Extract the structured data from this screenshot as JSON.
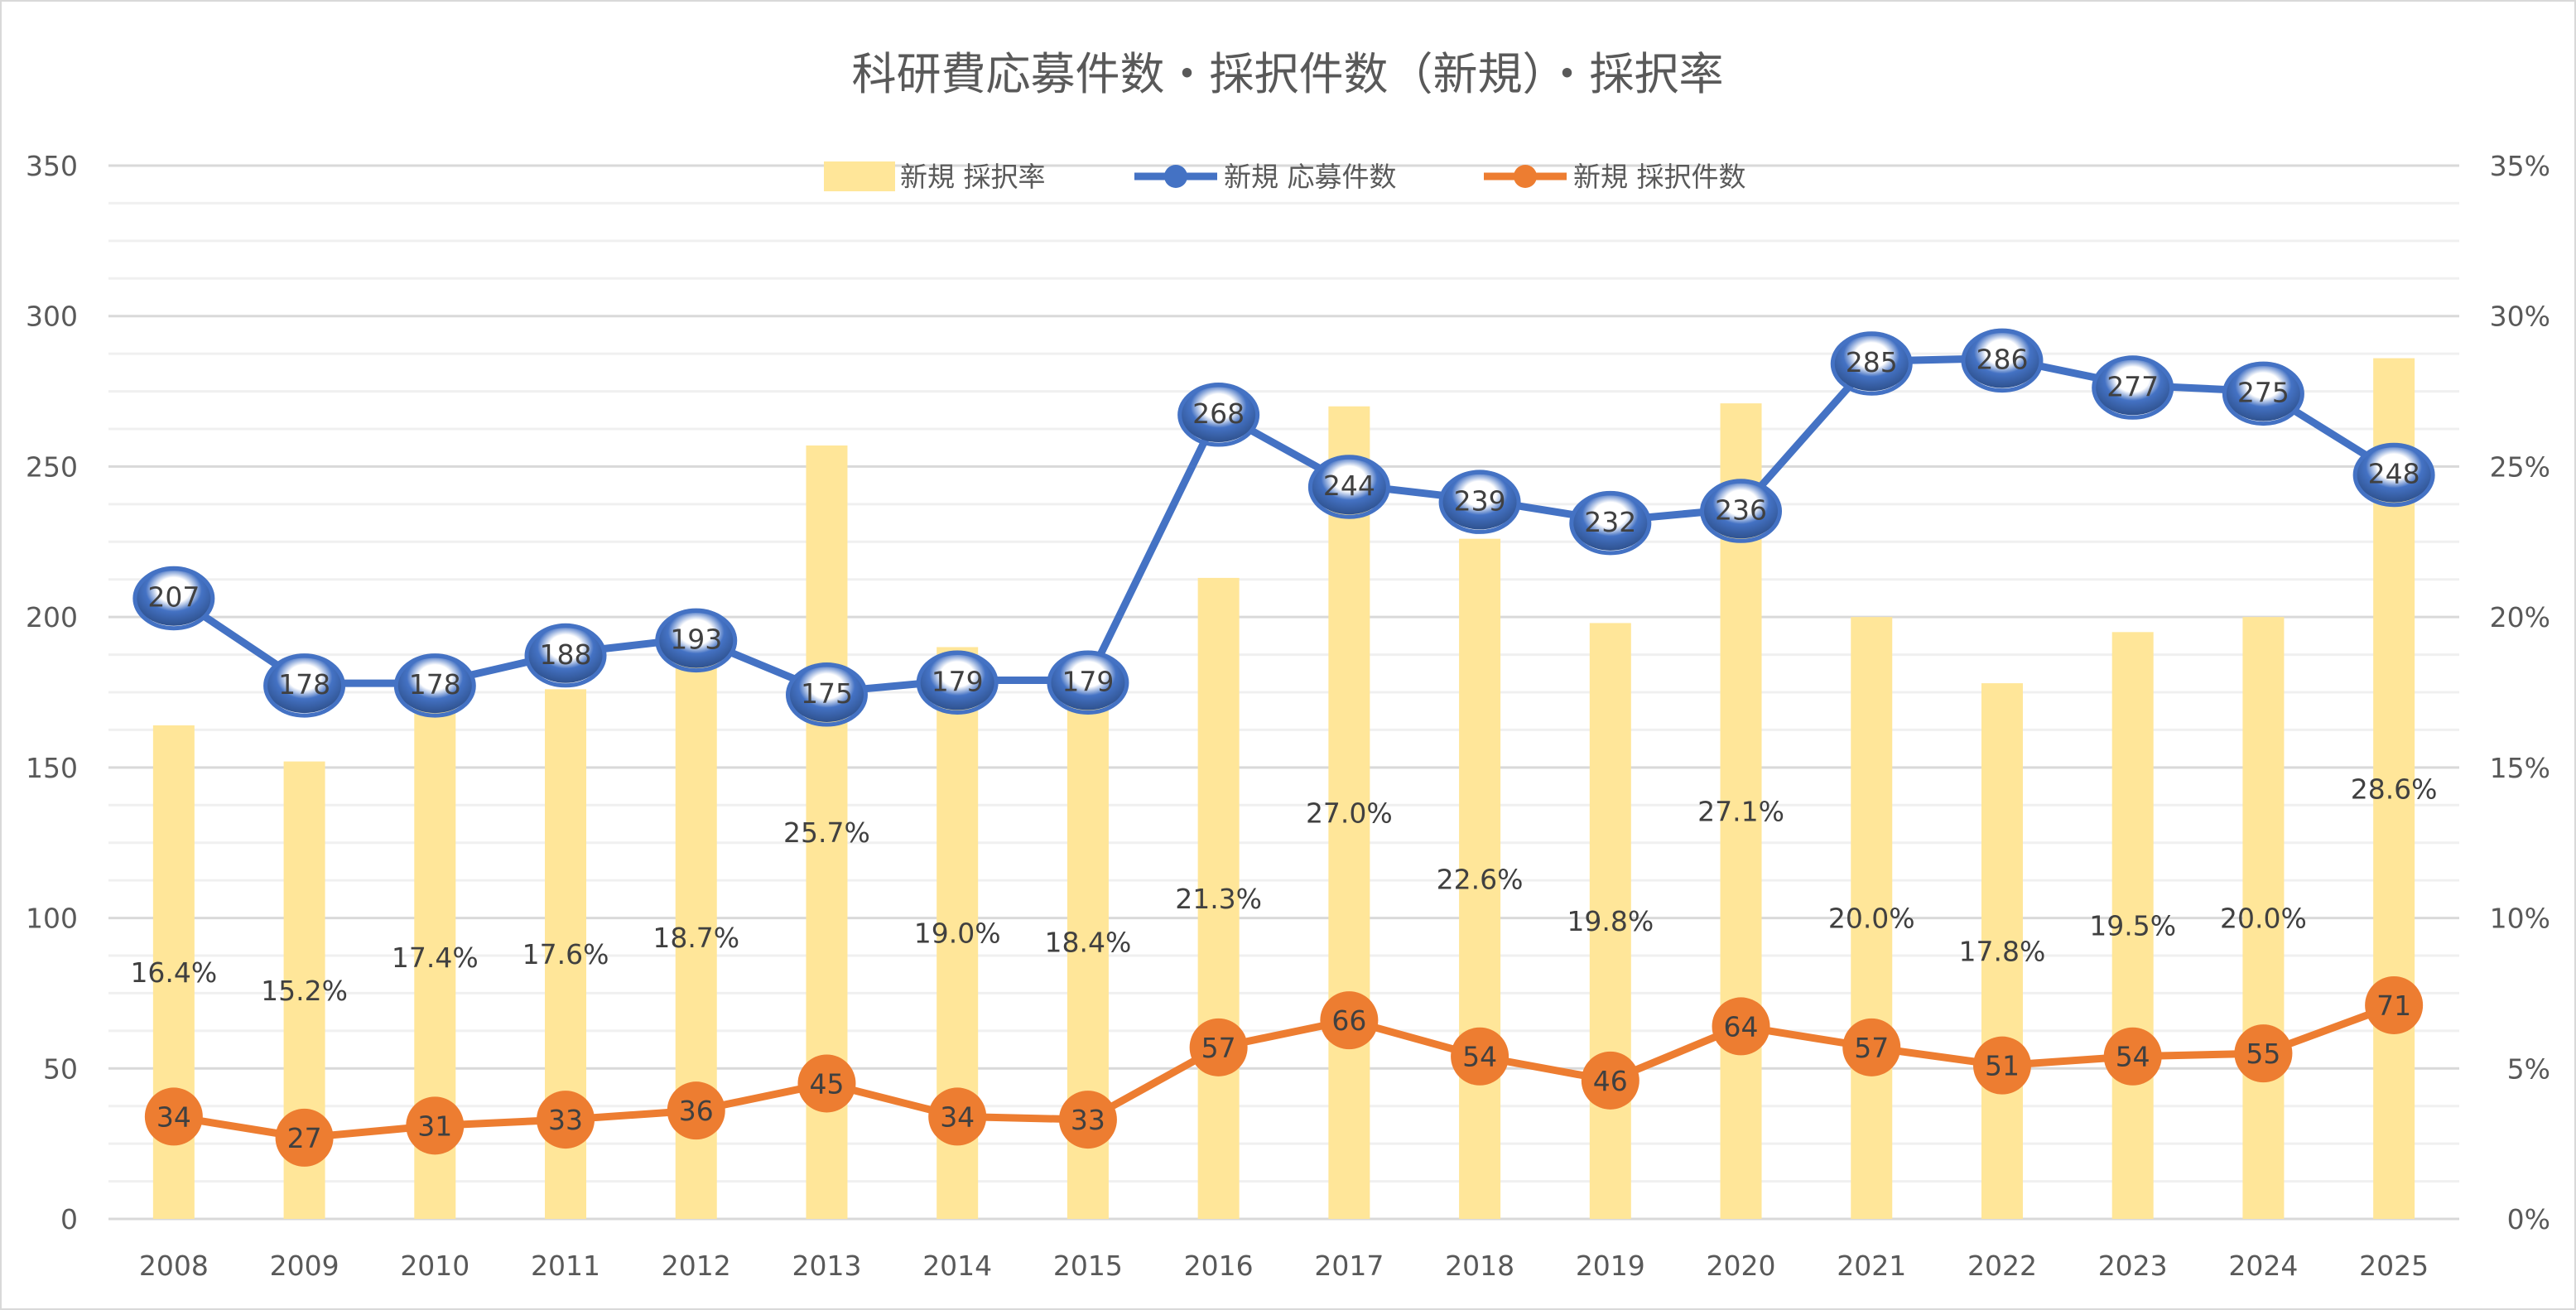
{
  "chart_data": {
    "type": "bar+line",
    "title": "科研費応募件数・採択件数（新規）・採択率",
    "categories": [
      "2008",
      "2009",
      "2010",
      "2011",
      "2012",
      "2013",
      "2014",
      "2015",
      "2016",
      "2017",
      "2018",
      "2019",
      "2020",
      "2021",
      "2022",
      "2023",
      "2024",
      "2025"
    ],
    "series": [
      {
        "name": "新規 採択率",
        "type": "bar",
        "axis": "right",
        "color": "#FFE699",
        "values": [
          16.4,
          15.2,
          17.4,
          17.6,
          18.7,
          25.7,
          19.0,
          18.4,
          21.3,
          27.0,
          22.6,
          19.8,
          27.1,
          20.0,
          17.8,
          19.5,
          20.0,
          28.6
        ],
        "labels": [
          "16.4%",
          "15.2%",
          "17.4%",
          "17.6%",
          "18.7%",
          "25.7%",
          "19.0%",
          "18.4%",
          "21.3%",
          "27.0%",
          "22.6%",
          "19.8%",
          "27.1%",
          "20.0%",
          "17.8%",
          "19.5%",
          "20.0%",
          "28.6%"
        ]
      },
      {
        "name": "新規 応募件数",
        "type": "line",
        "axis": "left",
        "color": "#4472C4",
        "values": [
          207,
          178,
          178,
          188,
          193,
          175,
          179,
          179,
          268,
          244,
          239,
          232,
          236,
          285,
          286,
          277,
          275,
          248
        ]
      },
      {
        "name": "新規 採択件数",
        "type": "line",
        "axis": "left",
        "color": "#ED7D31",
        "values": [
          34,
          27,
          31,
          33,
          36,
          45,
          34,
          33,
          57,
          66,
          54,
          46,
          64,
          57,
          51,
          54,
          55,
          71
        ]
      }
    ],
    "y_left": {
      "range": [
        0,
        350
      ],
      "ticks": [
        "0",
        "50",
        "100",
        "150",
        "200",
        "250",
        "300",
        "350"
      ]
    },
    "y_right": {
      "range": [
        0,
        35
      ],
      "ticks": [
        "0%",
        "5%",
        "10%",
        "15%",
        "20%",
        "25%",
        "30%",
        "35%"
      ]
    },
    "grid": true,
    "legend": "top"
  }
}
